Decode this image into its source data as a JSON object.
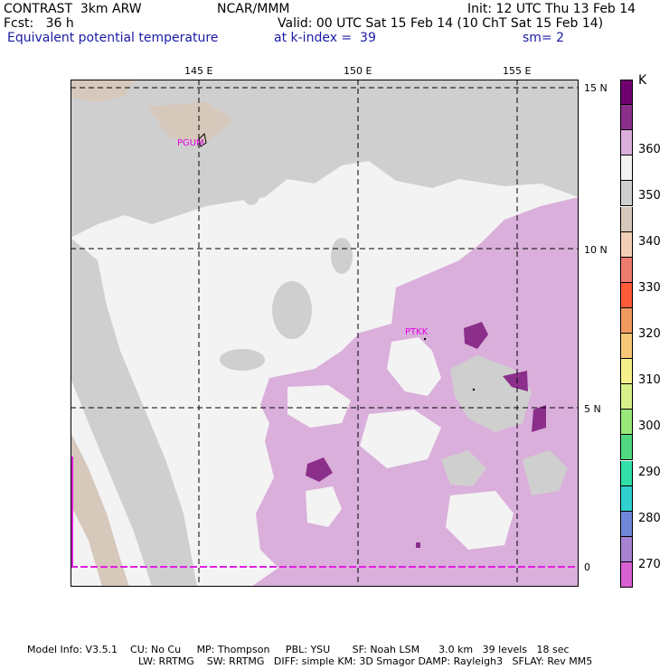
{
  "header": {
    "l1": "CONTRAST  3km ARW",
    "l2": "Fcst:   36 h",
    "l3": "Equivalent potential temperature",
    "c1": "NCAR/MMM",
    "r1": "Init: 12 UTC Thu 13 Feb 14",
    "r2": "Valid: 00 UTC Sat 15 Feb 14 (10 ChT Sat 15 Feb 14)",
    "r3a": "at k-index =  39",
    "r3b": "sm= 2"
  },
  "axes": {
    "lon": [
      "145 E",
      "150 E",
      "155 E"
    ],
    "lat": [
      "15 N",
      "10 N",
      "5 N",
      "0"
    ]
  },
  "stations": [
    "PGUM",
    "PTKK"
  ],
  "colorbar": {
    "unit": "K",
    "labels": [
      "360",
      "350",
      "340",
      "330",
      "320",
      "310",
      "300",
      "290",
      "280",
      "270"
    ],
    "colors": [
      "#700070",
      "#8b2f8b",
      "#daafdb",
      "#f3f3f3",
      "#cfcfcf",
      "#d7c8bc",
      "#f2cfb6",
      "#ef7a6e",
      "#ff5a3a",
      "#f19a5f",
      "#f5c777",
      "#f5f08a",
      "#d7f08a",
      "#99e87a",
      "#50d880",
      "#30e0a8",
      "#30d0d0",
      "#6f86d8",
      "#a682d0",
      "#d860d0"
    ]
  },
  "footer": {
    "f1": "Model Info: V3.5.1    CU: No Cu     MP: Thompson     PBL: YSU       SF: Noah LSM      3.0 km   39 levels   18 sec",
    "f2": "LW: RRTMG    SW: RRTMG   DIFF: simple KM: 3D Smagor DAMP: Rayleigh3   SFLAY: Rev MM5"
  }
}
